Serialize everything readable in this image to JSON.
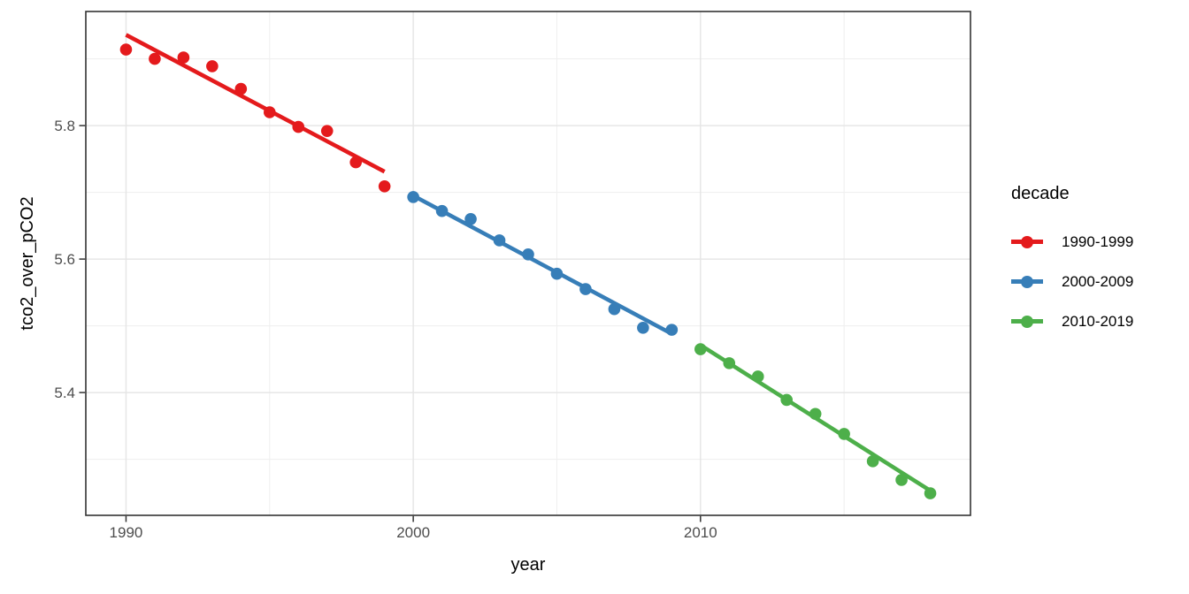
{
  "figure": {
    "background": "#FFFFFF"
  },
  "chart_data": {
    "type": "scatter",
    "title": "",
    "xlabel": "year",
    "ylabel": "tco2_over_pCO2",
    "x_range": [
      1988.6,
      2019.4
    ],
    "y_range": [
      5.216,
      5.971
    ],
    "x_major_ticks": [
      1990,
      2000,
      2010
    ],
    "x_tick_labels": [
      "1990",
      "2000",
      "2010"
    ],
    "x_minor_ticks": [
      1995,
      2005,
      2015
    ],
    "y_major_ticks": [
      5.4,
      5.6,
      5.8
    ],
    "y_tick_labels": [
      "5.4",
      "5.6",
      "5.8"
    ],
    "y_minor_ticks": [
      5.3,
      5.5,
      5.7,
      5.9
    ],
    "grid": "major+minor",
    "legend": {
      "title": "decade",
      "position": "right"
    },
    "series": [
      {
        "name": "1990-1999",
        "color": "#E41A1C",
        "x": [
          1990,
          1991,
          1992,
          1993,
          1994,
          1995,
          1996,
          1997,
          1998,
          1999
        ],
        "y": [
          5.914,
          5.9,
          5.902,
          5.889,
          5.855,
          5.82,
          5.798,
          5.792,
          5.745,
          5.709
        ],
        "trend": {
          "x": [
            1990,
            1999
          ],
          "y": [
            5.936,
            5.731
          ]
        }
      },
      {
        "name": "2000-2009",
        "color": "#377EB8",
        "x": [
          2000,
          2001,
          2002,
          2003,
          2004,
          2005,
          2006,
          2007,
          2008,
          2009
        ],
        "y": [
          5.693,
          5.672,
          5.66,
          5.628,
          5.607,
          5.578,
          5.555,
          5.525,
          5.497,
          5.494
        ],
        "trend": {
          "x": [
            2000,
            2009
          ],
          "y": [
            5.695,
            5.488
          ]
        }
      },
      {
        "name": "2010-2019",
        "color": "#4DAF4A",
        "x": [
          2010,
          2011,
          2012,
          2013,
          2014,
          2015,
          2016,
          2017,
          2018
        ],
        "y": [
          5.465,
          5.444,
          5.424,
          5.389,
          5.368,
          5.338,
          5.297,
          5.269,
          5.249
        ],
        "trend": {
          "x": [
            2010,
            2018
          ],
          "y": [
            5.471,
            5.253
          ]
        }
      }
    ]
  },
  "style": {
    "panel_border_color": "#333333",
    "grid_major_color": "#E6E6E6",
    "grid_minor_color": "#F0F0F0",
    "tick_color": "#333333",
    "tick_label_color": "#4D4D4D",
    "title_color": "#000000",
    "point_radius": 6.8,
    "trend_width": 4.6
  }
}
